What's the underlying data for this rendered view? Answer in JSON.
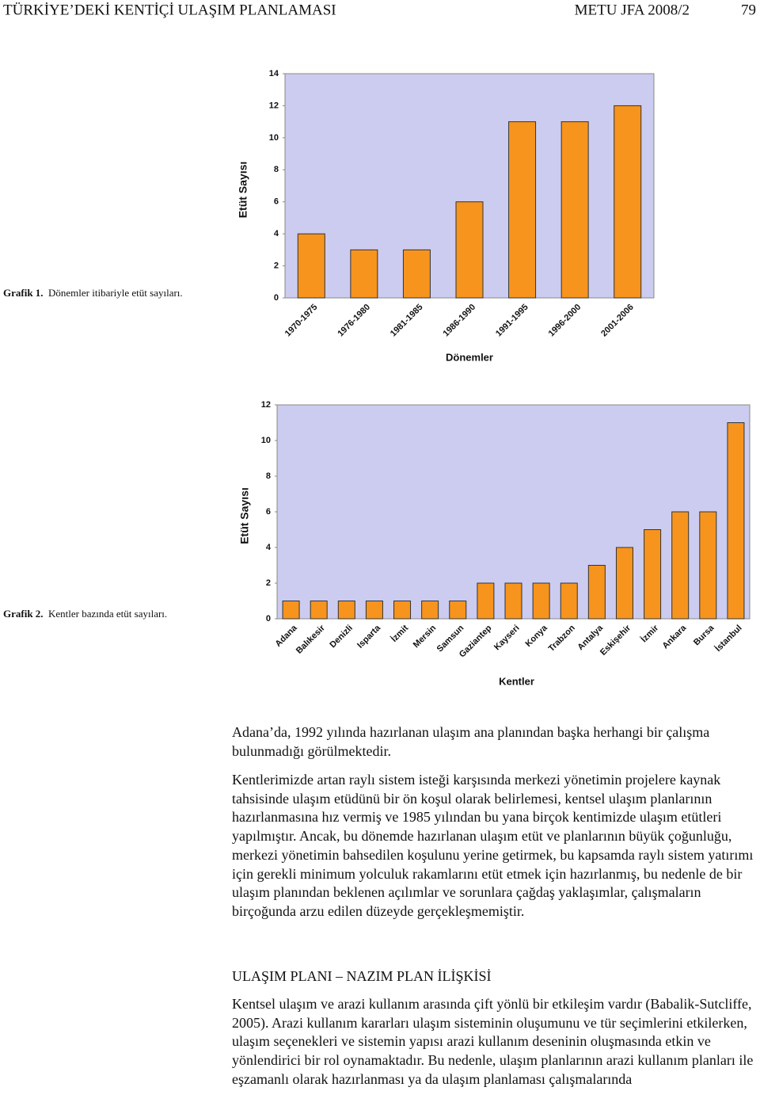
{
  "header": {
    "title": "TÜRKİYE’DEKİ KENTİÇİ ULAŞIM PLANLAMASI",
    "journal": "METU JFA 2008/2",
    "page": "79"
  },
  "chart_data": [
    {
      "type": "bar",
      "caption_label": "Grafik 1.",
      "caption": "Dönemler itibariyle etüt sayıları.",
      "x_label": "Dönemler",
      "y_label": "Etüt Sayısı",
      "categories": [
        "1970-1975",
        "1976-1980",
        "1981-1985",
        "1986-1990",
        "1991-1995",
        "1996-2000",
        "2001-2006"
      ],
      "values": [
        4,
        3,
        3,
        6,
        11,
        11,
        12
      ],
      "color": "#f7941d",
      "ylim": [
        0,
        14
      ],
      "yticks": [
        0,
        2,
        4,
        6,
        8,
        10,
        12,
        14
      ],
      "grid": false
    },
    {
      "type": "bar",
      "caption_label": "Grafik 2.",
      "caption": "Kentler bazında etüt sayıları.",
      "x_label": "Kentler",
      "y_label": "Etüt Sayısı",
      "categories": [
        "Adana",
        "Balıkesir",
        "Denizli",
        "Isparta",
        "İzmit",
        "Mersin",
        "Samsun",
        "Gaziantep",
        "Kayseri",
        "Konya",
        "Trabzon",
        "Antalya",
        "Eskişehir",
        "İzmir",
        "Ankara",
        "Bursa",
        "İstanbul"
      ],
      "values": [
        1,
        1,
        1,
        1,
        1,
        1,
        1,
        2,
        2,
        2,
        2,
        3,
        4,
        5,
        6,
        6,
        11
      ],
      "color": "#f7941d",
      "ylim": [
        0,
        12
      ],
      "yticks": [
        0,
        2,
        4,
        6,
        8,
        10,
        12
      ],
      "grid": false
    }
  ],
  "body": {
    "paragraphs": [
      "Adana’da, 1992 yılında hazırlanan ulaşım ana planından başka herhangi bir çalışma bulunmadığı görülmektedir.",
      "Kentlerimizde artan raylı sistem isteği karşısında merkezi yönetimin projelere kaynak tahsisinde ulaşım etüdünü bir ön koşul olarak belirlemesi, kentsel ulaşım planlarının hazırlanmasına hız vermiş ve 1985 yılından bu yana birçok kentimizde ulaşım etütleri yapılmıştır. Ancak, bu dönemde hazırlanan ulaşım etüt ve planlarının büyük çoğunluğu, merkezi yönetimin bahsedilen koşulunu yerine getirmek, bu kapsamda raylı sistem yatırımı için gerekli minimum yolculuk rakamlarını etüt etmek için hazırlanmış, bu nedenle de bir ulaşım planından beklenen açılımlar ve sorunlara çağdaş yaklaşımlar, çalışmaların birçoğunda arzu edilen düzeyde gerçekleşmemiştir."
    ],
    "heading": "ULAŞIM PLANI – NAZIM PLAN İLİŞKİSİ",
    "paragraph_after": "Kentsel ulaşım ve arazi kullanım arasında çift yönlü bir etkileşim vardır (Babalik-Sutcliffe, 2005). Arazi kullanım kararları ulaşım sisteminin oluşumunu ve tür seçimlerini etkilerken, ulaşım seçenekleri ve sistemin yapısı arazi kullanım deseninin oluşmasında etkin ve yönlendirici bir rol oynamaktadır. Bu nedenle, ulaşım planlarının arazi kullanım planları ile eşzamanlı olarak hazırlanması ya da ulaşım planlaması çalışmalarında"
  }
}
